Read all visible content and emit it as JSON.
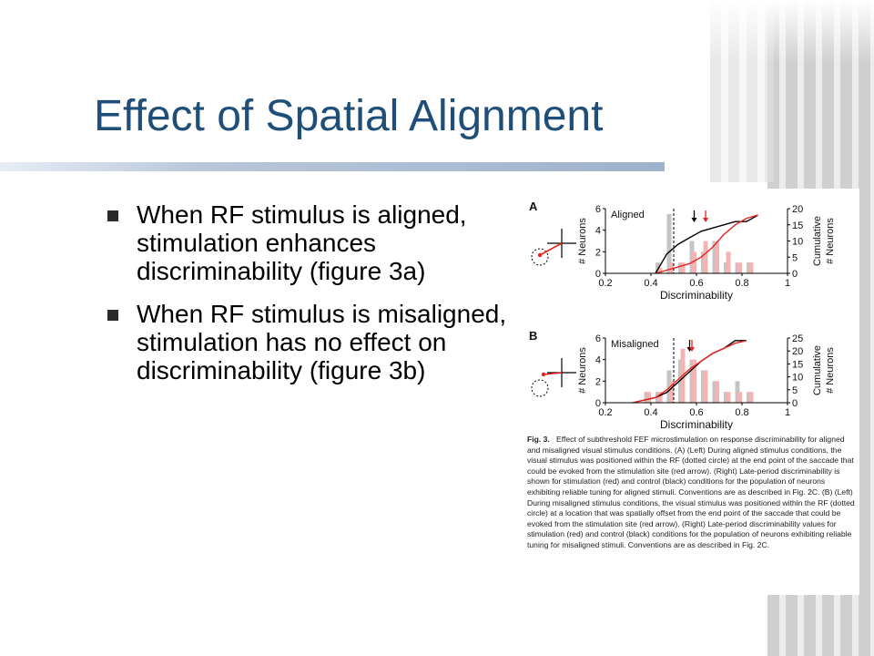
{
  "slide": {
    "title": "Effect of Spatial Alignment",
    "bullets": [
      "When RF stimulus is aligned, stimulation enhances discriminability (figure 3a)",
      "When RF stimulus is misaligned, stimulation has no effect on discriminability (figure 3b)"
    ]
  },
  "figure": {
    "caption_label": "Fig. 3.",
    "caption_text": "Effect of subthreshold FEF microstimulation on response discriminability for aligned and misaligned visual stimulus conditions. (A) (Left) During aligned stimulus conditions, the visual stimulus was positioned within the RF (dotted circle) at the end point of the saccade that could be evoked from the stimulation site (red arrow). (Right) Late-period discriminability is shown for stimulation (red) and control (black) conditions for the population of neurons exhibiting reliable tuning for aligned stimuli. Conventions are as described in Fig. 2C. (B) (Left) During misaligned stimulus conditions, the visual stimulus was positioned within the RF (dotted circle) at a location that was spatially offset from the end point of the saccade that could be evoked from the stimulation site (red arrow). (Right) Late-period discriminability values for stimulation (red) and control (black) conditions for the population of neurons exhibiting reliable tuning for misaligned stimuli. Conventions are as described in Fig. 2C.",
    "colors": {
      "stimulation": "#e8231e",
      "control": "#000000",
      "stim_bar": "#f6b3b3",
      "ctrl_bar": "#c4c4c4"
    }
  },
  "chart_data": [
    {
      "type": "bar",
      "panel": "A",
      "title": "Aligned",
      "xlabel": "Discriminability",
      "ylabel": "# Neurons",
      "y2label": "Cumulative # Neurons",
      "xticks": [
        "0.2",
        "0.4",
        "0.6",
        "0.8",
        "1"
      ],
      "yticks": [
        "0",
        "2",
        "4",
        "6"
      ],
      "y2ticks": [
        "0",
        "5",
        "10",
        "15",
        "20"
      ],
      "xlim": [
        0.2,
        1.0
      ],
      "ylim": [
        0,
        6
      ],
      "y2lim": [
        0,
        20
      ],
      "control_mean": 0.59,
      "stim_mean": 0.64,
      "chance": 0.5,
      "series": [
        {
          "name": "control",
          "kind": "bars",
          "x": [
            0.43,
            0.48,
            0.53,
            0.58,
            0.63,
            0.68,
            0.73,
            0.78,
            0.83
          ],
          "values": [
            1,
            5.5,
            1,
            3,
            2,
            3,
            1,
            1,
            1
          ]
        },
        {
          "name": "stimulation",
          "kind": "bars",
          "x": [
            0.44,
            0.49,
            0.54,
            0.59,
            0.64,
            0.69,
            0.74,
            0.79,
            0.84
          ],
          "values": [
            0.5,
            1,
            1,
            2,
            3,
            3,
            2,
            1,
            1
          ]
        },
        {
          "name": "control",
          "kind": "cumulative",
          "x": [
            0.42,
            0.47,
            0.52,
            0.57,
            0.62,
            0.67,
            0.72,
            0.77,
            0.82,
            0.87
          ],
          "values": [
            0,
            6,
            9,
            11,
            13,
            14,
            15,
            16,
            16,
            18
          ]
        },
        {
          "name": "stimulation",
          "kind": "cumulative",
          "x": [
            0.42,
            0.47,
            0.52,
            0.57,
            0.62,
            0.67,
            0.72,
            0.77,
            0.82,
            0.87
          ],
          "values": [
            0,
            1,
            2,
            3,
            5,
            8,
            12,
            15,
            17,
            18
          ]
        }
      ]
    },
    {
      "type": "bar",
      "panel": "B",
      "title": "Misaligned",
      "xlabel": "Discriminability",
      "ylabel": "# Neurons",
      "y2label": "Cumulative # Neurons",
      "xticks": [
        "0.2",
        "0.4",
        "0.6",
        "0.8",
        "1"
      ],
      "yticks": [
        "0",
        "2",
        "4",
        "6"
      ],
      "y2ticks": [
        "0",
        "5",
        "10",
        "15",
        "20",
        "25"
      ],
      "xlim": [
        0.2,
        1.0
      ],
      "ylim": [
        0,
        6
      ],
      "y2lim": [
        0,
        25
      ],
      "control_mean": 0.57,
      "stim_mean": 0.57,
      "chance": 0.5,
      "series": [
        {
          "name": "control",
          "kind": "bars",
          "x": [
            0.38,
            0.43,
            0.48,
            0.53,
            0.58,
            0.63,
            0.68,
            0.73,
            0.78,
            0.83
          ],
          "values": [
            1,
            1,
            3,
            4,
            4,
            3,
            2,
            1,
            2,
            1
          ]
        },
        {
          "name": "stimulation",
          "kind": "bars",
          "x": [
            0.39,
            0.44,
            0.49,
            0.54,
            0.59,
            0.64,
            0.69,
            0.74,
            0.79,
            0.84
          ],
          "values": [
            1,
            1,
            2,
            5,
            4,
            3,
            2,
            1,
            1,
            1
          ]
        },
        {
          "name": "control",
          "kind": "cumulative",
          "x": [
            0.32,
            0.37,
            0.42,
            0.47,
            0.52,
            0.57,
            0.62,
            0.67,
            0.72,
            0.77,
            0.82
          ],
          "values": [
            0,
            1,
            2,
            4,
            8,
            12,
            16,
            19,
            21,
            24,
            24
          ]
        },
        {
          "name": "stimulation",
          "kind": "cumulative",
          "x": [
            0.32,
            0.37,
            0.42,
            0.47,
            0.52,
            0.57,
            0.62,
            0.67,
            0.72,
            0.77,
            0.82
          ],
          "values": [
            0,
            1,
            2,
            5,
            9,
            13,
            16,
            19,
            21,
            23,
            24
          ]
        }
      ]
    }
  ]
}
